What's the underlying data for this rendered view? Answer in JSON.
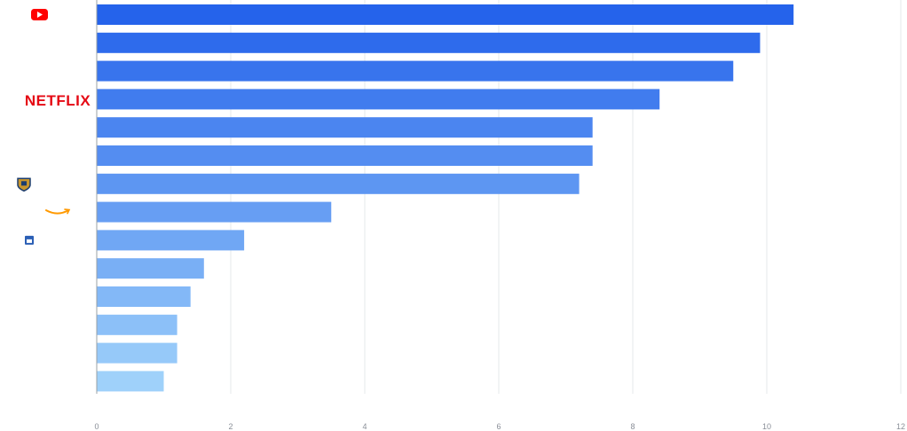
{
  "chart_data": {
    "type": "bar",
    "orientation": "horizontal",
    "title": "",
    "xlabel": "",
    "ylabel": "",
    "xlim": [
      0,
      12
    ],
    "x_ticks": [
      "0",
      "2",
      "4",
      "6",
      "8",
      "10",
      "12"
    ],
    "grid": true,
    "legend": "none",
    "categories": [
      "YouTube",
      "",
      "",
      "Netflix",
      "",
      "",
      "Warner Bros.",
      "Amazon",
      "",
      "",
      "",
      "",
      "",
      ""
    ],
    "category_logos": [
      "youtube-logo",
      null,
      null,
      "netflix-logo",
      null,
      null,
      "warner-bros-logo",
      "amazon-logo",
      "tile-logo",
      null,
      null,
      null,
      null,
      null
    ],
    "values": [
      10.4,
      9.9,
      9.5,
      8.4,
      7.4,
      7.4,
      7.2,
      3.5,
      2.2,
      1.6,
      1.4,
      1.2,
      1.2,
      1.0
    ],
    "colors": {
      "start": "#2563eb",
      "end": "#9fd1fa",
      "grid": "#e6e8eb",
      "axis": "#9aa0a6",
      "youtube": "#ff0000",
      "netflix": "#e50914",
      "amazon": "#ff9900"
    },
    "logo_text": {
      "netflix": "NETFLIX"
    }
  }
}
